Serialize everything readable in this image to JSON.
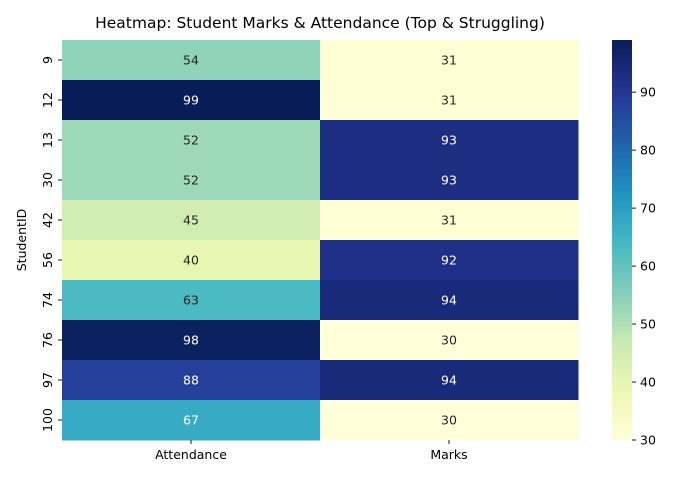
{
  "chart_data": {
    "type": "heatmap",
    "title": "Heatmap: Student Marks & Attendance (Top & Struggling)",
    "ylabel": "StudentID",
    "xlabel": "",
    "columns": [
      "Attendance",
      "Marks"
    ],
    "rows": [
      "9",
      "12",
      "13",
      "30",
      "42",
      "56",
      "74",
      "76",
      "97",
      "100"
    ],
    "values": [
      [
        54,
        31
      ],
      [
        99,
        31
      ],
      [
        52,
        93
      ],
      [
        52,
        93
      ],
      [
        45,
        31
      ],
      [
        40,
        92
      ],
      [
        63,
        94
      ],
      [
        98,
        30
      ],
      [
        88,
        94
      ],
      [
        67,
        30
      ]
    ],
    "colormap": "YlGnBu",
    "vmin": 30,
    "vmax": 99,
    "colorbar_ticks": [
      30,
      40,
      50,
      60,
      70,
      80,
      90
    ],
    "annotations": true
  }
}
